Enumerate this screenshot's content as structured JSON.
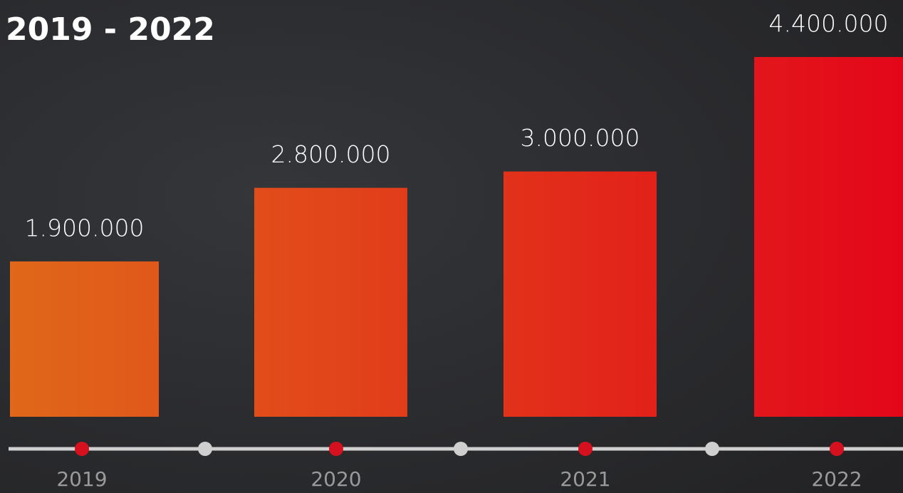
{
  "chart_data": {
    "type": "bar",
    "title": "2019 - 2022",
    "categories": [
      "2019",
      "2020",
      "2021",
      "2022"
    ],
    "values": [
      1900000,
      2800000,
      3000000,
      4400000
    ],
    "value_labels": [
      "1.900.000",
      "2.800.000",
      "3.000.000",
      "4.400.000"
    ],
    "gradient": [
      "#e0691a",
      "#e3061a"
    ],
    "ylim": [
      0,
      4400000
    ]
  }
}
